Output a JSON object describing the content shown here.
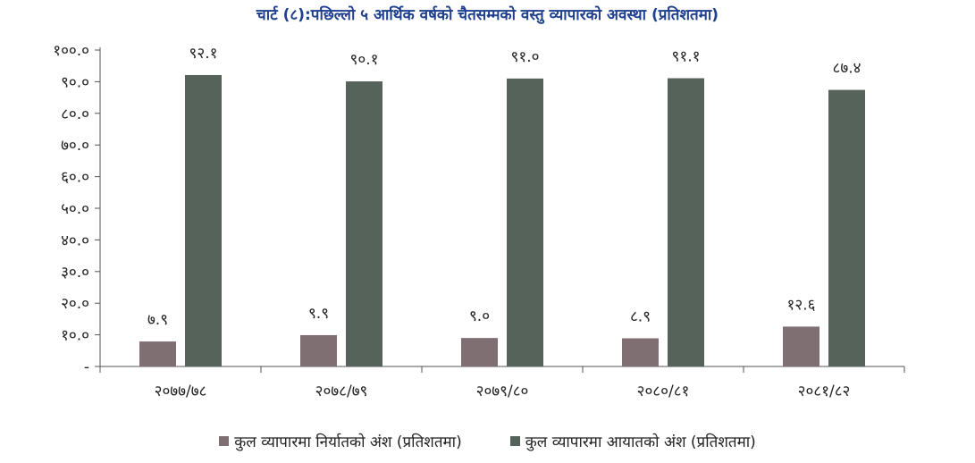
{
  "chart_data": {
    "type": "bar",
    "title": "चार्ट (८):पछिल्लो ५ आर्थिक वर्षको चैतसम्मको वस्तु व्यापारको अवस्था (प्रतिशतमा)",
    "categories": [
      "२०७७/७८",
      "२०७८/७९",
      "२०७९/८०",
      "२०८०/८१",
      "२०८१/८२"
    ],
    "series": [
      {
        "name": "कुल व्यापारमा निर्यातको अंश (प्रतिशतमा)",
        "values": [
          7.9,
          9.9,
          9.0,
          8.9,
          12.6
        ],
        "labels": [
          "७.९",
          "९.९",
          "९.०",
          "८.९",
          "१२.६"
        ],
        "color": "#7f6f72"
      },
      {
        "name": "कुल व्यापारमा आयातको अंश (प्रतिशतमा)",
        "values": [
          92.1,
          90.1,
          91.0,
          91.1,
          87.4
        ],
        "labels": [
          "९२.१",
          "९०.१",
          "९१.०",
          "९१.१",
          "८७.४"
        ],
        "color": "#56635a"
      }
    ],
    "ylim": [
      0,
      100
    ],
    "yticks": [
      0,
      10,
      20,
      30,
      40,
      50,
      60,
      70,
      80,
      90,
      100
    ],
    "ytick_labels": [
      "-",
      "१०.०",
      "२०.०",
      "३०.०",
      "४०.०",
      "५०.०",
      "६०.०",
      "७०.०",
      "८०.०",
      "९०.०",
      "१००.०"
    ],
    "grid": false,
    "legend_position": "bottom"
  }
}
